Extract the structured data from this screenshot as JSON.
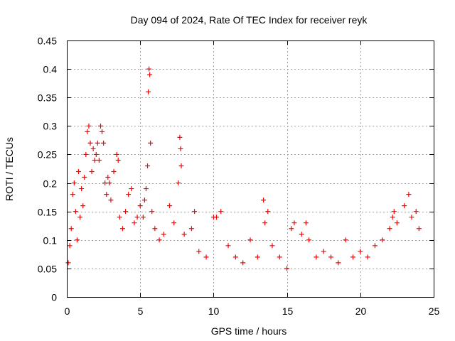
{
  "chart_data": {
    "type": "scatter",
    "title": "Day 094 of 2024, Rate Of TEC Index for receiver reyk",
    "xlabel": "GPS time / hours",
    "ylabel": "ROTI / TECUs",
    "xlim": [
      0,
      25
    ],
    "ylim": [
      0,
      0.45
    ],
    "xticks": [
      0,
      5,
      10,
      15,
      20,
      25
    ],
    "xtick_labels": [
      "0",
      "5",
      "10",
      "15",
      "20",
      "25"
    ],
    "yticks": [
      0,
      0.05,
      0.1,
      0.15,
      0.2,
      0.25,
      0.3,
      0.35,
      0.4,
      0.45
    ],
    "ytick_labels": [
      "0",
      "0.05",
      "0.1",
      "0.15",
      "0.2",
      "0.25",
      "0.3",
      "0.35",
      "0.4",
      "0.45"
    ],
    "grid": true,
    "marker": "+",
    "color": "#ff0000",
    "series": [
      {
        "name": "ROTI",
        "points": [
          [
            0.1,
            0.06
          ],
          [
            0.2,
            0.09
          ],
          [
            0.3,
            0.12
          ],
          [
            0.4,
            0.18
          ],
          [
            0.5,
            0.2
          ],
          [
            0.6,
            0.15
          ],
          [
            0.7,
            0.1
          ],
          [
            0.8,
            0.22
          ],
          [
            0.9,
            0.14
          ],
          [
            1.0,
            0.19
          ],
          [
            1.1,
            0.16
          ],
          [
            1.2,
            0.21
          ],
          [
            1.3,
            0.25
          ],
          [
            1.4,
            0.29
          ],
          [
            1.5,
            0.3
          ],
          [
            1.6,
            0.27
          ],
          [
            1.7,
            0.22
          ],
          [
            1.8,
            0.26
          ],
          [
            1.9,
            0.24
          ],
          [
            2.0,
            0.25
          ],
          [
            2.1,
            0.27
          ],
          [
            2.2,
            0.24
          ],
          [
            2.3,
            0.3
          ],
          [
            2.4,
            0.29
          ],
          [
            2.5,
            0.27
          ],
          [
            2.6,
            0.2
          ],
          [
            2.7,
            0.18
          ],
          [
            2.8,
            0.21
          ],
          [
            2.9,
            0.2
          ],
          [
            3.0,
            0.17
          ],
          [
            3.2,
            0.22
          ],
          [
            3.4,
            0.25
          ],
          [
            3.5,
            0.24
          ],
          [
            3.6,
            0.14
          ],
          [
            3.8,
            0.12
          ],
          [
            4.0,
            0.15
          ],
          [
            4.2,
            0.18
          ],
          [
            4.4,
            0.19
          ],
          [
            4.6,
            0.13
          ],
          [
            4.8,
            0.14
          ],
          [
            5.0,
            0.16
          ],
          [
            5.2,
            0.14
          ],
          [
            5.3,
            0.17
          ],
          [
            5.4,
            0.19
          ],
          [
            5.5,
            0.23
          ],
          [
            5.55,
            0.36
          ],
          [
            5.6,
            0.4
          ],
          [
            5.65,
            0.39
          ],
          [
            5.7,
            0.27
          ],
          [
            5.8,
            0.15
          ],
          [
            6.0,
            0.12
          ],
          [
            6.3,
            0.1
          ],
          [
            6.6,
            0.11
          ],
          [
            7.0,
            0.16
          ],
          [
            7.3,
            0.13
          ],
          [
            7.6,
            0.2
          ],
          [
            7.7,
            0.28
          ],
          [
            7.75,
            0.26
          ],
          [
            7.8,
            0.23
          ],
          [
            8.0,
            0.11
          ],
          [
            8.5,
            0.12
          ],
          [
            8.7,
            0.15
          ],
          [
            9.0,
            0.08
          ],
          [
            9.5,
            0.07
          ],
          [
            10.0,
            0.14
          ],
          [
            10.2,
            0.14
          ],
          [
            10.5,
            0.15
          ],
          [
            11.0,
            0.09
          ],
          [
            11.5,
            0.07
          ],
          [
            12.0,
            0.06
          ],
          [
            12.5,
            0.1
          ],
          [
            13.0,
            0.07
          ],
          [
            13.4,
            0.17
          ],
          [
            13.5,
            0.13
          ],
          [
            13.7,
            0.15
          ],
          [
            14.0,
            0.09
          ],
          [
            14.5,
            0.07
          ],
          [
            15.0,
            0.05
          ],
          [
            15.3,
            0.12
          ],
          [
            15.5,
            0.13
          ],
          [
            16.0,
            0.11
          ],
          [
            16.3,
            0.13
          ],
          [
            16.5,
            0.1
          ],
          [
            17.0,
            0.07
          ],
          [
            17.5,
            0.08
          ],
          [
            18.0,
            0.07
          ],
          [
            18.5,
            0.06
          ],
          [
            19.0,
            0.1
          ],
          [
            19.5,
            0.07
          ],
          [
            20.0,
            0.08
          ],
          [
            20.5,
            0.07
          ],
          [
            21.0,
            0.09
          ],
          [
            21.5,
            0.1
          ],
          [
            22.0,
            0.12
          ],
          [
            22.2,
            0.14
          ],
          [
            22.3,
            0.15
          ],
          [
            22.5,
            0.13
          ],
          [
            23.0,
            0.16
          ],
          [
            23.3,
            0.18
          ],
          [
            23.5,
            0.14
          ],
          [
            23.8,
            0.15
          ],
          [
            24.0,
            0.12
          ]
        ]
      }
    ]
  }
}
